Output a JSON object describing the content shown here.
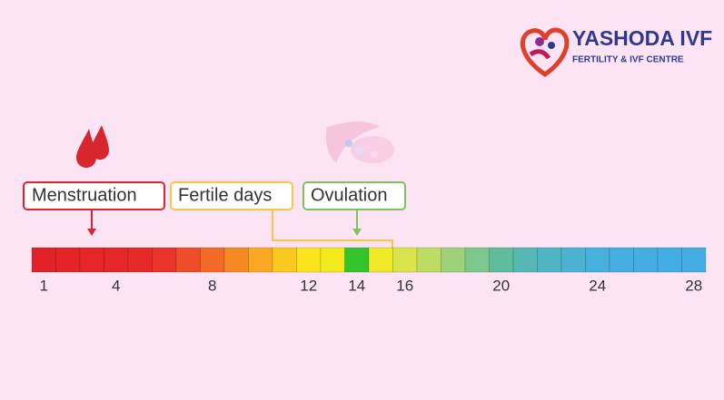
{
  "logo": {
    "name": "YASHODA IVF",
    "tagline": "FERTILITY & IVF CENTRE"
  },
  "labels": {
    "menstruation": "Menstruation",
    "fertile": "Fertile days",
    "ovulation": "Ovulation"
  },
  "cycle": {
    "day_colors": [
      "#e32227",
      "#e42427",
      "#e52528",
      "#e62729",
      "#e8292a",
      "#ea332a",
      "#ee4d29",
      "#f16b27",
      "#f58a25",
      "#f8a823",
      "#fbc81f",
      "#fae51c",
      "#f2ea1d",
      "#33c52b",
      "#eeea2a",
      "#d9e44a",
      "#bcdc64",
      "#9dd17a",
      "#7cc78e",
      "#5fbd9e",
      "#55b8b4",
      "#4fb5c4",
      "#4bb2d2",
      "#47b0dc",
      "#45afe0",
      "#44aee2",
      "#43ade3",
      "#43ade3"
    ],
    "ticks": [
      1,
      4,
      8,
      12,
      14,
      16,
      20,
      24,
      28
    ]
  }
}
